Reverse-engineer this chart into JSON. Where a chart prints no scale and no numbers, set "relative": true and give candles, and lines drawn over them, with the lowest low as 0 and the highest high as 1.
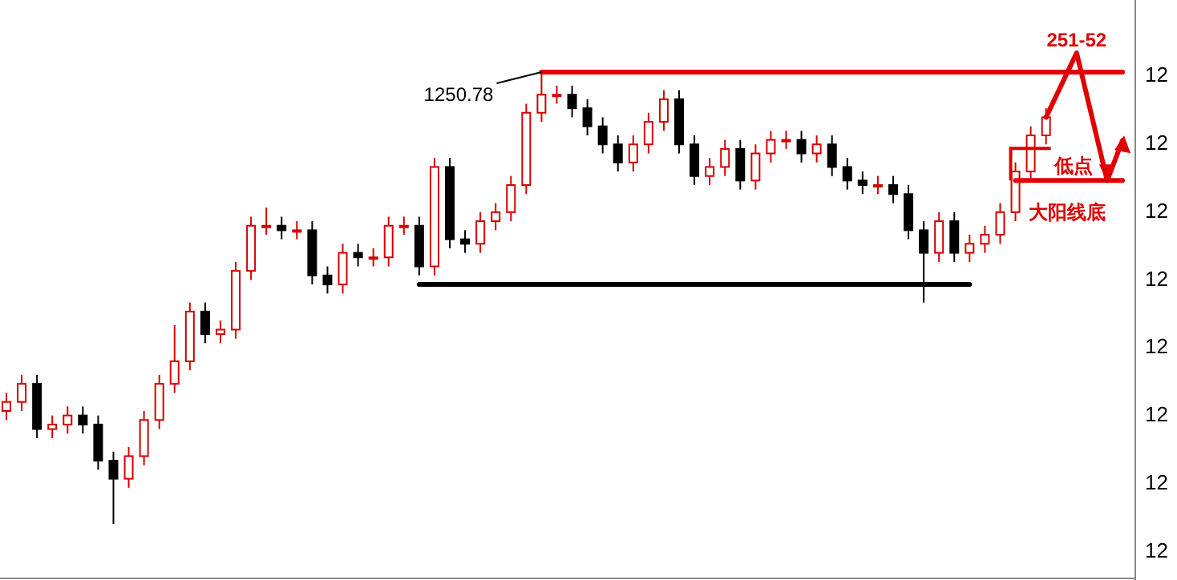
{
  "chart_data": {
    "type": "candlestick",
    "relative": true,
    "categories": [
      null,
      null,
      null,
      null,
      null,
      null,
      null,
      null,
      null,
      null,
      null,
      null,
      null,
      null,
      null,
      null,
      null,
      null,
      null,
      null,
      null,
      null,
      null,
      null,
      null,
      null,
      null,
      null,
      null,
      null,
      null,
      null,
      null,
      null,
      null,
      null,
      null,
      null,
      null,
      null,
      null,
      null,
      null,
      null,
      null,
      null,
      null,
      null,
      null,
      null,
      null,
      null,
      null,
      null,
      null,
      null,
      null,
      null,
      null,
      null,
      null,
      null,
      null,
      null,
      null,
      null,
      null,
      null,
      null,
      null,
      null,
      null,
      null,
      null
    ],
    "ohlc": [
      [
        0.25,
        0.29,
        0.23,
        0.27
      ],
      [
        0.27,
        0.33,
        0.25,
        0.31
      ],
      [
        0.31,
        0.33,
        0.19,
        0.21
      ],
      [
        0.21,
        0.24,
        0.19,
        0.22
      ],
      [
        0.22,
        0.26,
        0.2,
        0.24
      ],
      [
        0.24,
        0.26,
        0.2,
        0.22
      ],
      [
        0.22,
        0.24,
        0.12,
        0.14
      ],
      [
        0.14,
        0.16,
        0.0,
        0.1
      ],
      [
        0.1,
        0.17,
        0.08,
        0.15
      ],
      [
        0.15,
        0.25,
        0.13,
        0.23
      ],
      [
        0.23,
        0.33,
        0.21,
        0.31
      ],
      [
        0.31,
        0.44,
        0.29,
        0.36
      ],
      [
        0.36,
        0.49,
        0.34,
        0.47
      ],
      [
        0.47,
        0.49,
        0.4,
        0.42
      ],
      [
        0.42,
        0.45,
        0.4,
        0.43
      ],
      [
        0.43,
        0.58,
        0.41,
        0.56
      ],
      [
        0.56,
        0.68,
        0.54,
        0.66
      ],
      [
        0.66,
        0.7,
        0.64,
        0.66
      ],
      [
        0.66,
        0.68,
        0.63,
        0.65
      ],
      [
        0.65,
        0.67,
        0.63,
        0.65
      ],
      [
        0.65,
        0.67,
        0.53,
        0.55
      ],
      [
        0.55,
        0.57,
        0.51,
        0.53
      ],
      [
        0.53,
        0.62,
        0.51,
        0.6
      ],
      [
        0.6,
        0.62,
        0.57,
        0.59
      ],
      [
        0.59,
        0.61,
        0.57,
        0.59
      ],
      [
        0.59,
        0.68,
        0.57,
        0.66
      ],
      [
        0.66,
        0.68,
        0.64,
        0.66
      ],
      [
        0.66,
        0.68,
        0.55,
        0.57
      ],
      [
        0.57,
        0.81,
        0.55,
        0.79
      ],
      [
        0.79,
        0.81,
        0.61,
        0.63
      ],
      [
        0.63,
        0.65,
        0.6,
        0.62
      ],
      [
        0.62,
        0.69,
        0.6,
        0.67
      ],
      [
        0.67,
        0.71,
        0.65,
        0.69
      ],
      [
        0.69,
        0.77,
        0.67,
        0.75
      ],
      [
        0.75,
        0.93,
        0.73,
        0.91
      ],
      [
        0.91,
        1.0,
        0.89,
        0.95
      ],
      [
        0.95,
        0.97,
        0.93,
        0.95
      ],
      [
        0.95,
        0.97,
        0.9,
        0.92
      ],
      [
        0.92,
        0.94,
        0.86,
        0.88
      ],
      [
        0.88,
        0.9,
        0.82,
        0.84
      ],
      [
        0.84,
        0.86,
        0.78,
        0.8
      ],
      [
        0.8,
        0.86,
        0.78,
        0.84
      ],
      [
        0.84,
        0.91,
        0.82,
        0.89
      ],
      [
        0.89,
        0.96,
        0.87,
        0.94
      ],
      [
        0.94,
        0.96,
        0.82,
        0.84
      ],
      [
        0.84,
        0.86,
        0.75,
        0.77
      ],
      [
        0.77,
        0.81,
        0.75,
        0.79
      ],
      [
        0.79,
        0.85,
        0.77,
        0.83
      ],
      [
        0.83,
        0.85,
        0.74,
        0.76
      ],
      [
        0.76,
        0.84,
        0.74,
        0.82
      ],
      [
        0.82,
        0.87,
        0.8,
        0.85
      ],
      [
        0.85,
        0.87,
        0.83,
        0.85
      ],
      [
        0.85,
        0.87,
        0.8,
        0.82
      ],
      [
        0.82,
        0.86,
        0.8,
        0.84
      ],
      [
        0.84,
        0.86,
        0.77,
        0.79
      ],
      [
        0.79,
        0.81,
        0.74,
        0.76
      ],
      [
        0.76,
        0.78,
        0.73,
        0.75
      ],
      [
        0.75,
        0.77,
        0.73,
        0.75
      ],
      [
        0.75,
        0.77,
        0.71,
        0.73
      ],
      [
        0.73,
        0.75,
        0.63,
        0.65
      ],
      [
        0.65,
        0.67,
        0.49,
        0.6
      ],
      [
        0.6,
        0.69,
        0.58,
        0.67
      ],
      [
        0.67,
        0.69,
        0.58,
        0.6
      ],
      [
        0.6,
        0.64,
        0.58,
        0.62
      ],
      [
        0.62,
        0.66,
        0.6,
        0.64
      ],
      [
        0.64,
        0.71,
        0.62,
        0.69
      ],
      [
        0.69,
        0.8,
        0.67,
        0.78
      ],
      [
        0.78,
        0.88,
        0.76,
        0.86
      ],
      [
        0.86,
        0.92,
        0.84,
        0.9
      ],
      null,
      null,
      null,
      null,
      null
    ],
    "colors": [
      "#d40000",
      "#d40000",
      "#000000",
      "#d40000",
      "#d40000",
      "#000000",
      "#000000",
      "#000000",
      "#d40000",
      "#d40000",
      "#d40000",
      "#d40000",
      "#d40000",
      "#000000",
      "#d40000",
      "#d40000",
      "#d40000",
      "#d40000",
      "#000000",
      "#d40000",
      "#000000",
      "#000000",
      "#d40000",
      "#000000",
      "#d40000",
      "#d40000",
      "#d40000",
      "#000000",
      "#d40000",
      "#000000",
      "#000000",
      "#d40000",
      "#d40000",
      "#d40000",
      "#d40000",
      "#d40000",
      "#d40000",
      "#000000",
      "#000000",
      "#000000",
      "#000000",
      "#d40000",
      "#d40000",
      "#d40000",
      "#000000",
      "#000000",
      "#d40000",
      "#d40000",
      "#000000",
      "#d40000",
      "#d40000",
      "#d40000",
      "#000000",
      "#d40000",
      "#000000",
      "#000000",
      "#000000",
      "#d40000",
      "#000000",
      "#000000",
      "#000000",
      "#d40000",
      "#000000",
      "#d40000",
      "#d40000",
      "#d40000",
      "#d40000",
      "#d40000",
      "#d40000",
      null,
      null,
      null,
      null,
      null
    ],
    "series": [
      {
        "type": "line",
        "color": "#000000",
        "values": [
          null,
          null,
          null,
          null,
          null,
          null,
          null,
          null,
          null,
          null,
          null,
          null,
          null,
          null,
          null,
          null,
          null,
          null,
          null,
          null,
          null,
          null,
          null,
          null,
          null,
          null,
          null,
          0.53,
          0.53,
          0.53,
          0.53,
          0.53,
          0.53,
          0.53,
          0.53,
          0.53,
          0.53,
          0.53,
          0.53,
          0.53,
          0.53,
          0.53,
          0.53,
          0.53,
          0.53,
          0.53,
          0.53,
          0.53,
          0.53,
          0.53,
          0.53,
          0.53,
          0.53,
          0.53,
          0.53,
          0.53,
          0.53,
          0.53,
          0.53,
          0.53,
          0.53,
          0.53,
          0.53,
          0.53,
          null,
          null,
          null,
          null,
          null,
          null,
          null,
          null,
          null,
          null
        ]
      },
      {
        "type": "line",
        "color": "#e00000",
        "values": [
          null,
          null,
          null,
          null,
          null,
          null,
          null,
          null,
          null,
          null,
          null,
          null,
          null,
          null,
          null,
          null,
          null,
          null,
          null,
          null,
          null,
          null,
          null,
          null,
          null,
          null,
          null,
          null,
          null,
          null,
          null,
          null,
          null,
          null,
          null,
          1.0,
          1.0,
          1.0,
          1.0,
          1.0,
          1.0,
          1.0,
          1.0,
          1.0,
          1.0,
          1.0,
          1.0,
          1.0,
          1.0,
          1.0,
          1.0,
          1.0,
          1.0,
          1.0,
          1.0,
          1.0,
          1.0,
          1.0,
          1.0,
          1.0,
          1.0,
          1.0,
          1.0,
          1.0,
          1.0,
          1.0,
          1.0,
          1.0,
          1.0,
          1.0,
          1.0,
          1.0,
          1.0,
          1.0
        ]
      },
      {
        "type": "line",
        "color": "#e00000",
        "values": [
          null,
          null,
          null,
          null,
          null,
          null,
          null,
          null,
          null,
          null,
          null,
          null,
          null,
          null,
          null,
          null,
          null,
          null,
          null,
          null,
          null,
          null,
          null,
          null,
          null,
          null,
          null,
          null,
          null,
          null,
          null,
          null,
          null,
          null,
          null,
          null,
          null,
          null,
          null,
          null,
          null,
          null,
          null,
          null,
          null,
          null,
          null,
          null,
          null,
          null,
          null,
          null,
          null,
          null,
          null,
          null,
          null,
          null,
          null,
          null,
          null,
          null,
          null,
          null,
          null,
          null,
          0.76,
          0.76,
          0.76,
          0.76,
          0.76,
          0.76,
          0.76,
          0.76
        ]
      }
    ],
    "annotations": [
      "1250.78",
      "251-52",
      "低点",
      "大阳线底",
      "12",
      "12",
      "12",
      "12",
      "12",
      "12",
      "12",
      "12"
    ]
  }
}
